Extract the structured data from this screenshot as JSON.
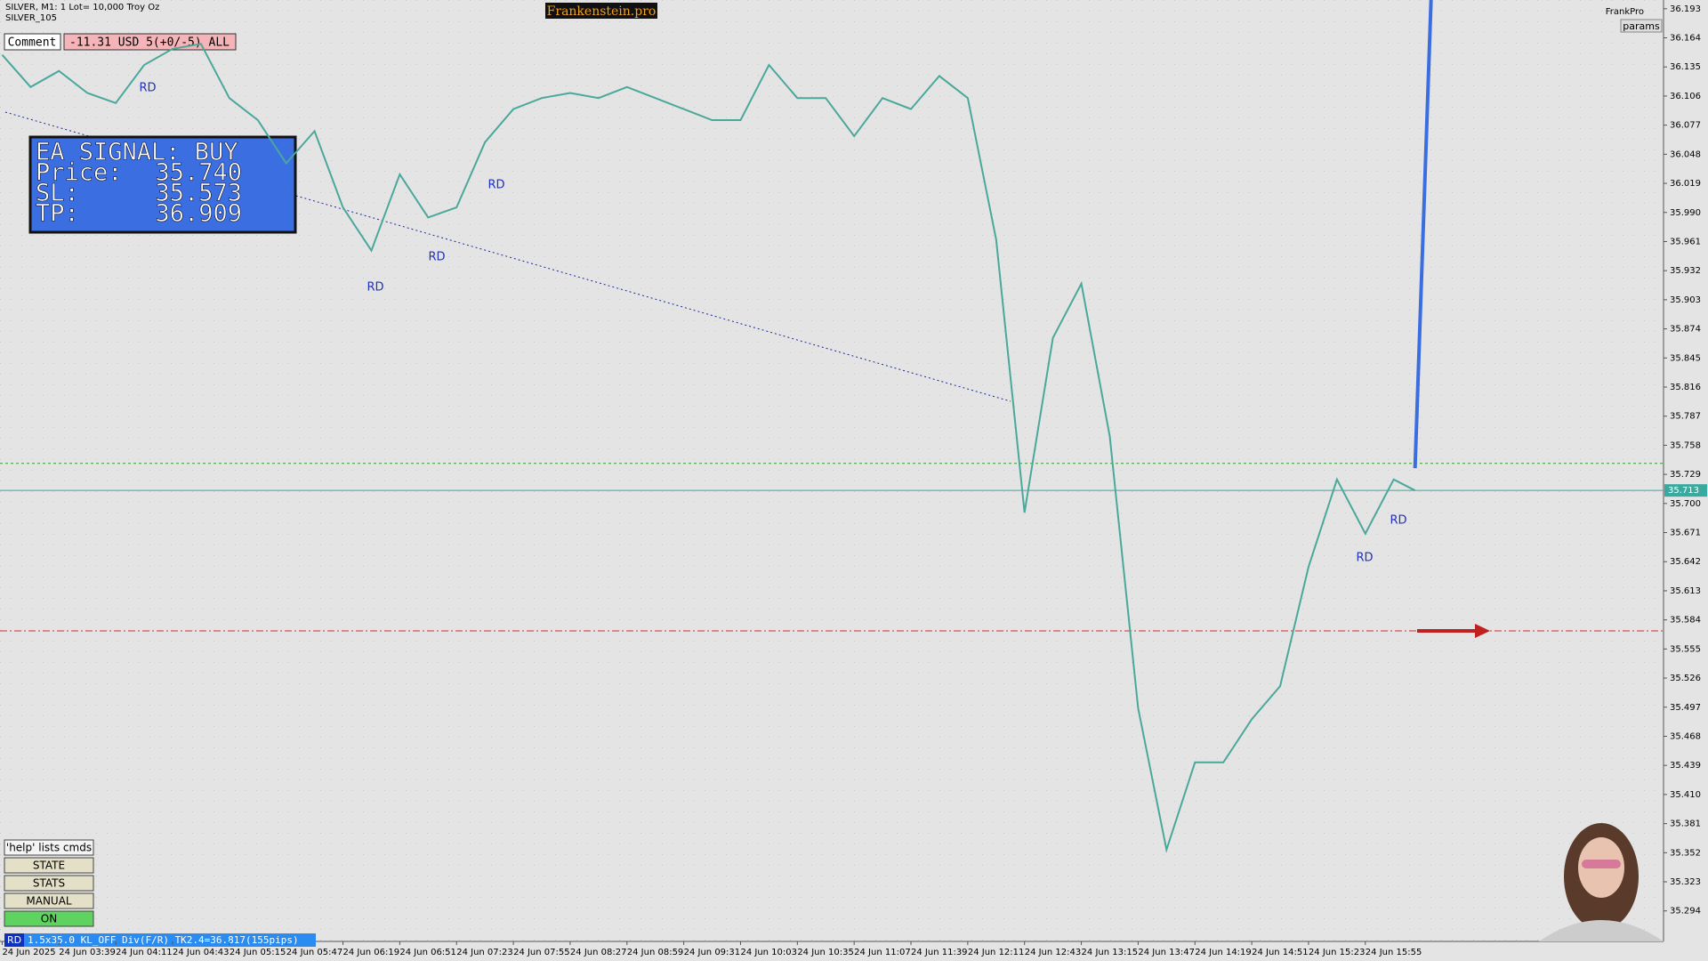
{
  "header": {
    "symbol": "SILVER, M1: 1 Lot= 10,000 Troy Oz",
    "account": "SILVER_105",
    "brand": "Frankenstein.pro",
    "user": "FrankPro",
    "params": "params"
  },
  "comment": {
    "label": "Comment",
    "text": "-11.31 USD 5(+0/-5) ALL"
  },
  "signal": {
    "title": "EA SIGNAL: BUY",
    "price_label": "Price:",
    "price": "35.740",
    "sl_label": "SL:",
    "sl": "35.573",
    "tp_label": "TP:",
    "tp": "36.909"
  },
  "current_price": "35.713",
  "annotations": [
    "RD",
    "RD",
    "RD",
    "RD",
    "RD",
    "RD"
  ],
  "buttons": [
    "'help' lists cmds",
    "STATE",
    "STATS",
    "MANUAL",
    "ON"
  ],
  "status": {
    "tag": "RD",
    "text": "1.5x35.0 KL_OFF Div(F/R) TK2.4=36.817(155pips)"
  },
  "chart_data": {
    "type": "line",
    "color": "#4aa89a",
    "x": [
      0,
      16,
      32,
      48,
      64,
      80,
      96,
      112,
      128,
      144,
      160,
      176,
      192,
      208,
      224,
      240,
      256,
      272,
      288,
      304,
      320,
      336,
      352,
      368,
      384,
      400,
      416,
      432,
      448,
      464,
      480,
      496,
      512,
      528,
      544,
      560,
      576,
      592,
      608,
      624,
      640,
      656,
      672,
      688,
      704,
      720,
      736,
      752,
      768,
      784,
      796
    ],
    "values": [
      36.147,
      36.115,
      36.131,
      36.109,
      36.099,
      36.137,
      36.153,
      36.158,
      36.104,
      36.082,
      36.039,
      36.071,
      35.995,
      35.952,
      36.028,
      35.985,
      35.995,
      36.06,
      36.093,
      36.104,
      36.109,
      36.104,
      36.115,
      36.104,
      36.093,
      36.082,
      36.082,
      36.137,
      36.104,
      36.104,
      36.066,
      36.104,
      36.093,
      36.126,
      36.104,
      35.963,
      35.691,
      35.865,
      35.919,
      35.767,
      35.496,
      35.355,
      35.442,
      35.442,
      35.485,
      35.518,
      35.637,
      35.724,
      35.67,
      35.724,
      35.713
    ],
    "xlim": [
      0,
      936
    ],
    "xticks": [
      {
        "value": 0,
        "label": "24 Jun 2025"
      },
      {
        "value": 32,
        "label": "24 Jun 03:39"
      },
      {
        "value": 64,
        "label": "24 Jun 04:11"
      },
      {
        "value": 96,
        "label": "24 Jun 04:43"
      },
      {
        "value": 128,
        "label": "24 Jun 05:15"
      },
      {
        "value": 160,
        "label": "24 Jun 05:47"
      },
      {
        "value": 192,
        "label": "24 Jun 06:19"
      },
      {
        "value": 224,
        "label": "24 Jun 06:51"
      },
      {
        "value": 256,
        "label": "24 Jun 07:23"
      },
      {
        "value": 288,
        "label": "24 Jun 07:55"
      },
      {
        "value": 320,
        "label": "24 Jun 08:27"
      },
      {
        "value": 352,
        "label": "24 Jun 08:59"
      },
      {
        "value": 384,
        "label": "24 Jun 09:31"
      },
      {
        "value": 416,
        "label": "24 Jun 10:03"
      },
      {
        "value": 448,
        "label": "24 Jun 10:35"
      },
      {
        "value": 480,
        "label": "24 Jun 11:07"
      },
      {
        "value": 512,
        "label": "24 Jun 11:39"
      },
      {
        "value": 544,
        "label": "24 Jun 12:11"
      },
      {
        "value": 576,
        "label": "24 Jun 12:43"
      },
      {
        "value": 608,
        "label": "24 Jun 13:15"
      },
      {
        "value": 640,
        "label": "24 Jun 13:47"
      },
      {
        "value": 672,
        "label": "24 Jun 14:19"
      },
      {
        "value": 704,
        "label": "24 Jun 14:51"
      },
      {
        "value": 736,
        "label": "24 Jun 15:23"
      },
      {
        "value": 768,
        "label": "24 Jun 15:55"
      }
    ],
    "ylim": [
      35.2636,
      36.2017
    ],
    "yticks": [
      36.193,
      36.164,
      36.135,
      36.106,
      36.077,
      36.048,
      36.019,
      {
        "value": 35.99,
        "label": "35.990"
      },
      35.961,
      35.932,
      35.903,
      35.874,
      35.845,
      35.816,
      35.787,
      35.758,
      35.729,
      {
        "value": 35.7,
        "label": "35.700"
      },
      35.671,
      35.642,
      35.613,
      35.584,
      35.555,
      35.526,
      35.497,
      35.468,
      35.439,
      {
        "value": 35.41,
        "label": "35.410"
      },
      35.381,
      35.352,
      35.323,
      35.294
    ]
  }
}
